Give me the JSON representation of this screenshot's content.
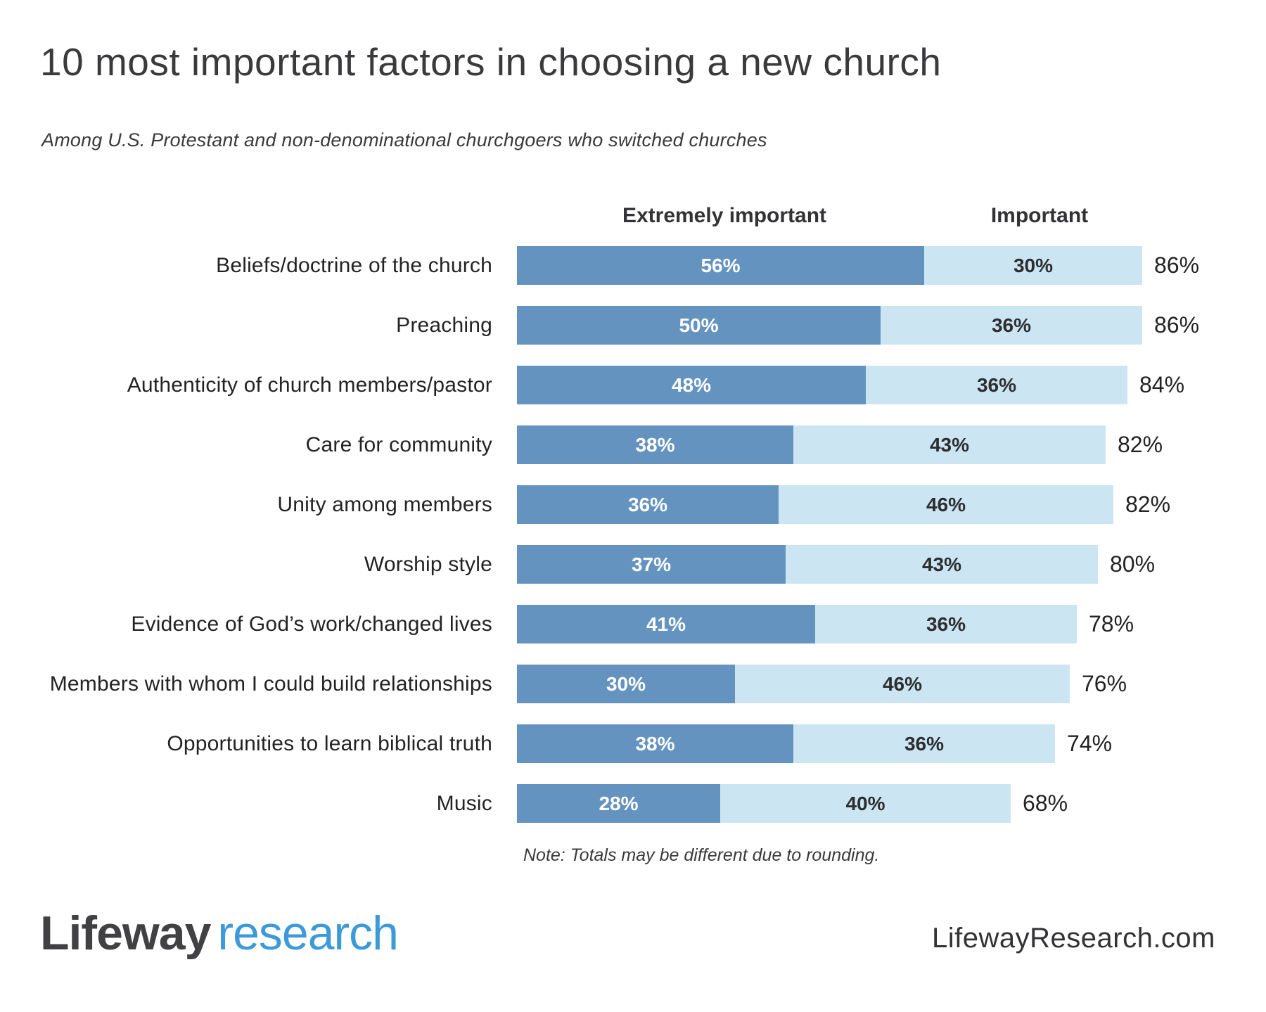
{
  "page": {
    "title": "10 most important factors in choosing a new church",
    "subtitle": "Among U.S. Protestant and non-denominational churchgoers who switched churches",
    "note": "Note: Totals may be different due to rounding."
  },
  "chart_data": {
    "type": "bar",
    "orientation": "horizontal-stacked",
    "title": "10 most important factors in choosing a new church",
    "subtitle": "Among U.S. Protestant and non-denominational churchgoers who switched churches",
    "legend_position": "top",
    "grid": false,
    "value_suffix": "%",
    "xlim": [
      0,
      86
    ],
    "categories": [
      "Beliefs/doctrine of the church",
      "Preaching",
      "Authenticity of church members/pastor",
      "Care for community",
      "Unity among members",
      "Worship style",
      "Evidence of God’s work/changed lives",
      "Members with whom I could build relationships",
      "Opportunities to learn biblical truth",
      "Music"
    ],
    "series": [
      {
        "name": "Extremely important",
        "color": "#6593c0",
        "values": [
          56,
          50,
          48,
          38,
          36,
          37,
          41,
          30,
          38,
          28
        ]
      },
      {
        "name": "Important",
        "color": "#cbe6f2",
        "values": [
          30,
          36,
          36,
          43,
          46,
          43,
          36,
          46,
          36,
          40
        ]
      }
    ],
    "totals": [
      86,
      86,
      84,
      82,
      82,
      80,
      78,
      76,
      74,
      68
    ]
  },
  "footer": {
    "logo_primary": "Lifeway",
    "logo_secondary": "research",
    "logo_primary_color": "#414144",
    "logo_secondary_color": "#3d9ad8",
    "website": "LifewayResearch.com"
  }
}
